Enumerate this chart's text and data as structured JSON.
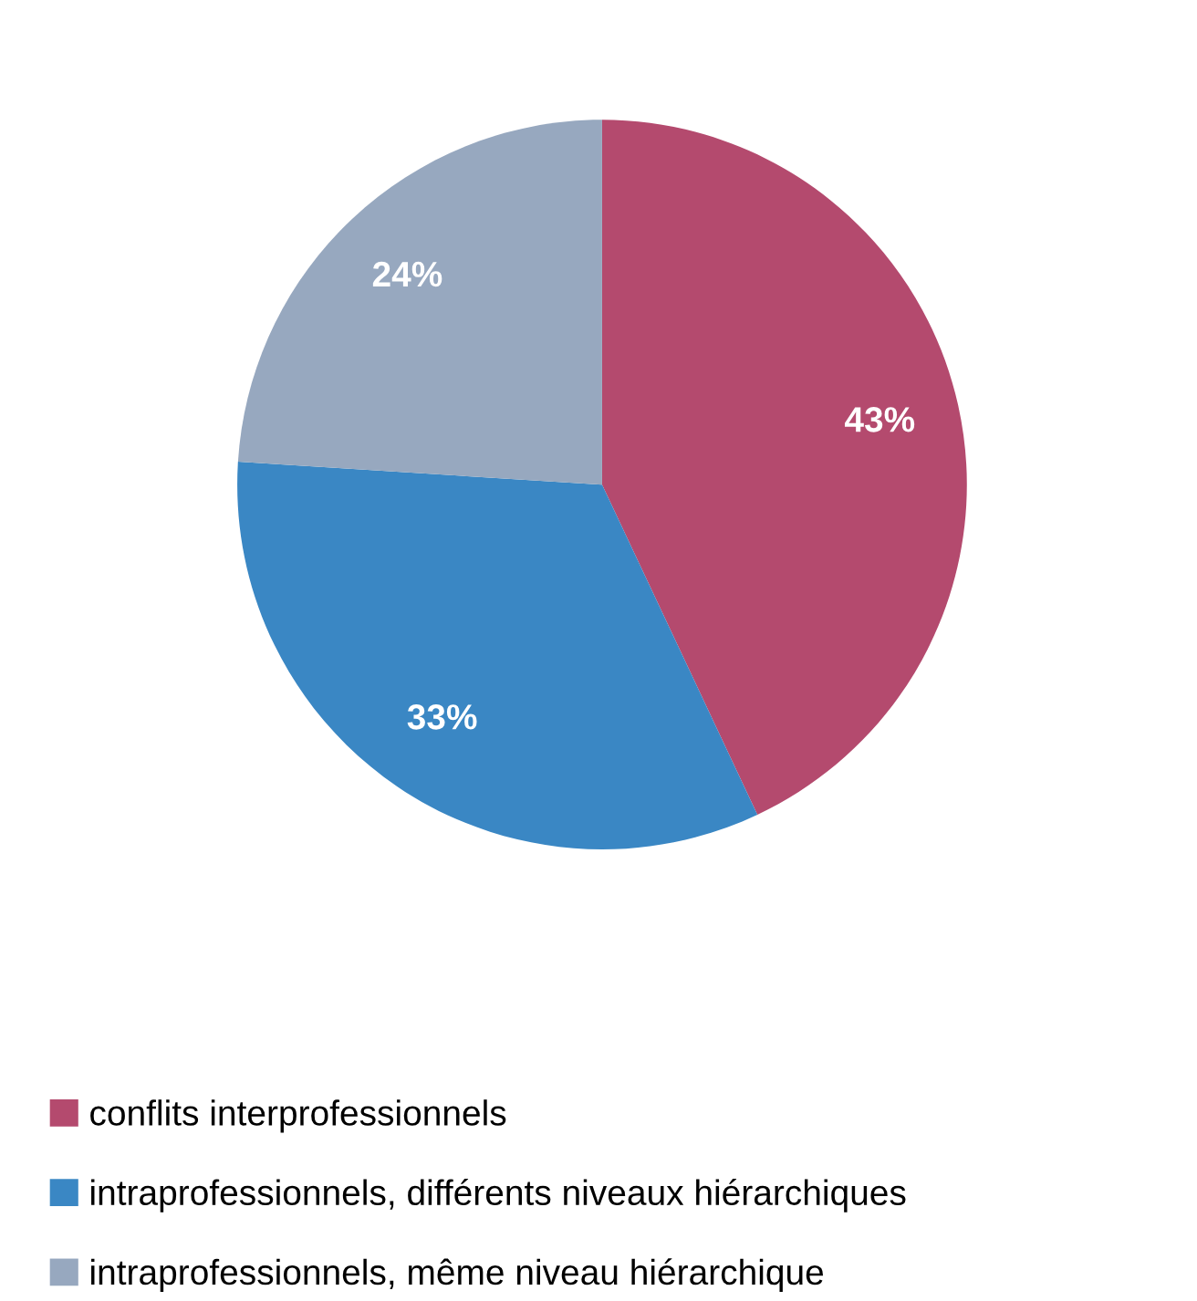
{
  "chart_data": {
    "type": "pie",
    "categories": [
      "conflits interprofessionnels",
      "intraprofessionnels, différents niveaux hiérarchiques",
      "intraprofessionnels, même niveau hiérarchique"
    ],
    "values": [
      43,
      33,
      24
    ],
    "colors": [
      "#b44a6e",
      "#3a87c4",
      "#97a8bf"
    ],
    "value_labels": [
      "43%",
      "33%",
      "24%"
    ],
    "legend": "bottom"
  }
}
